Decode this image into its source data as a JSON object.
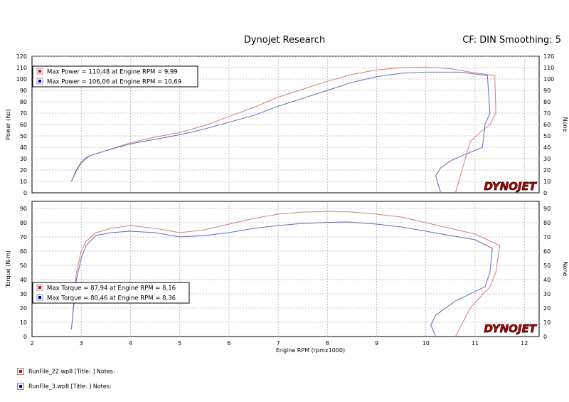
{
  "header": {
    "title": "Dynojet Research",
    "right": "CF: DIN Smoothing: 5"
  },
  "brand": "DYNOJET",
  "colors": {
    "run1": "#d77a80",
    "run2": "#6767c4",
    "swatch1": "#d40000",
    "swatch2": "#0000cc"
  },
  "footer": {
    "run1": "RunFile_22.wp8 [Title: ]  Notes:",
    "run2": "RunFile_3.wp8 [Title: ]  Notes:"
  },
  "chart_data": [
    {
      "type": "line",
      "xlabel": "",
      "ylabel": "Power (hp)",
      "ylabel_right": "None",
      "xlim": [
        2,
        12.3
      ],
      "ylim": [
        0,
        120
      ],
      "yticks": [
        0,
        10,
        20,
        30,
        40,
        50,
        60,
        70,
        80,
        90,
        100,
        110,
        120
      ],
      "grid": true,
      "legend": [
        {
          "text": "Max Power = 110,48 at Engine RPM = 9,99",
          "series": 0
        },
        {
          "text": "Max Power = 106,06 at Engine RPM = 10,69",
          "series": 1
        }
      ],
      "series": [
        {
          "name": "RunFile_22.wp8",
          "x": [
            2.8,
            2.9,
            3.0,
            3.1,
            3.2,
            3.5,
            4.0,
            4.5,
            5.0,
            5.5,
            6.0,
            6.5,
            7.0,
            7.5,
            8.0,
            8.5,
            9.0,
            9.5,
            10.0,
            10.5,
            10.9,
            11.4,
            11.42,
            11.3,
            11.1,
            10.9,
            10.8,
            10.6
          ],
          "y": [
            10,
            19,
            26,
            30,
            33,
            37,
            44,
            49,
            53,
            59,
            67,
            75,
            84,
            91,
            98,
            104,
            108,
            110,
            110.5,
            109,
            106,
            103,
            70,
            60,
            53,
            45,
            30,
            0
          ]
        },
        {
          "name": "RunFile_3.wp8",
          "x": [
            2.8,
            2.9,
            3.0,
            3.1,
            3.2,
            3.5,
            4.0,
            4.5,
            5.0,
            5.5,
            6.0,
            6.5,
            7.0,
            7.5,
            8.0,
            8.5,
            9.0,
            9.5,
            10.0,
            10.5,
            10.7,
            11.25,
            11.3,
            11.2,
            11.15,
            10.7,
            10.5,
            10.3,
            10.2,
            10.3
          ],
          "y": [
            10,
            20,
            27,
            31,
            33,
            37,
            43,
            47,
            51,
            56,
            62,
            68,
            76,
            83,
            90,
            97,
            102,
            105,
            106,
            106,
            106,
            103,
            70,
            60,
            40,
            32,
            28,
            22,
            15,
            0
          ]
        }
      ]
    },
    {
      "type": "line",
      "xlabel": "Engine RPM (rpmx1000)",
      "ylabel": "Torque (N-m)",
      "ylabel_right": "None",
      "xlim": [
        2,
        12.3
      ],
      "ylim": [
        0,
        95
      ],
      "xticks": [
        2,
        3,
        4,
        5,
        6,
        7,
        8,
        9,
        10,
        11,
        12
      ],
      "yticks": [
        0,
        10,
        20,
        30,
        40,
        50,
        60,
        70,
        80,
        90
      ],
      "grid": true,
      "legend": [
        {
          "text": "Max Torque = 87,94 at Engine RPM = 8,16",
          "series": 0
        },
        {
          "text": "Max Torque = 80,46 at Engine RPM = 8,36",
          "series": 1
        }
      ],
      "series": [
        {
          "name": "RunFile_22.wp8",
          "x": [
            2.8,
            2.9,
            3.0,
            3.1,
            3.3,
            3.6,
            4.0,
            4.5,
            5.0,
            5.5,
            6.0,
            6.5,
            7.0,
            7.5,
            8.0,
            8.16,
            8.5,
            9.0,
            9.5,
            10.0,
            10.5,
            11.0,
            11.5,
            11.42,
            11.3,
            10.9,
            10.6
          ],
          "y": [
            5,
            45,
            60,
            67,
            73,
            76,
            78,
            76,
            73,
            75,
            79,
            83,
            86,
            87.5,
            87.9,
            87.9,
            87.5,
            86,
            84,
            80,
            76,
            72,
            64,
            45,
            35,
            20,
            0
          ]
        },
        {
          "name": "RunFile_3.wp8",
          "x": [
            2.8,
            2.9,
            3.0,
            3.1,
            3.3,
            3.6,
            4.0,
            4.5,
            5.0,
            5.5,
            6.0,
            6.5,
            7.0,
            7.5,
            8.0,
            8.36,
            8.5,
            9.0,
            9.5,
            10.0,
            10.5,
            11.0,
            11.35,
            11.3,
            11.2,
            10.6,
            10.2,
            10.1,
            10.2
          ],
          "y": [
            5,
            40,
            55,
            64,
            71,
            73,
            74,
            73,
            70,
            71,
            73,
            76,
            78,
            79.5,
            80.2,
            80.5,
            80.3,
            79,
            77,
            74,
            71,
            68,
            62,
            45,
            35,
            25,
            15,
            8,
            0
          ]
        }
      ]
    }
  ]
}
